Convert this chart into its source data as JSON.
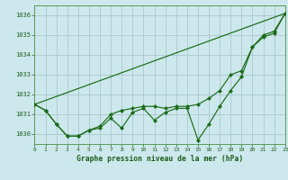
{
  "x": [
    0,
    1,
    2,
    3,
    4,
    5,
    6,
    7,
    8,
    9,
    10,
    11,
    12,
    13,
    14,
    15,
    16,
    17,
    18,
    19,
    20,
    21,
    22,
    23
  ],
  "line1": [
    1031.5,
    1031.2,
    1030.5,
    1029.9,
    1029.9,
    1030.2,
    1030.3,
    1030.8,
    1030.3,
    1031.1,
    1031.3,
    1030.7,
    1031.1,
    1031.3,
    1031.3,
    1029.7,
    1030.5,
    1031.4,
    1032.2,
    1032.9,
    1034.4,
    1034.9,
    1035.1,
    1036.1
  ],
  "line2": [
    1031.5,
    1031.2,
    1030.5,
    1029.9,
    1029.9,
    1030.2,
    1030.4,
    1031.0,
    1031.2,
    1031.3,
    1031.4,
    1031.4,
    1031.3,
    1031.4,
    1031.4,
    1031.5,
    1031.8,
    1032.2,
    1033.0,
    1033.2,
    1034.4,
    1035.0,
    1035.2,
    1036.1
  ],
  "line3": [
    [
      0,
      1031.5
    ],
    [
      23,
      1036.1
    ]
  ],
  "ylim": [
    1029.5,
    1036.5
  ],
  "xlim": [
    0,
    23
  ],
  "yticks": [
    1030,
    1031,
    1032,
    1033,
    1034,
    1035,
    1036
  ],
  "xticks": [
    0,
    1,
    2,
    3,
    4,
    5,
    6,
    7,
    8,
    9,
    10,
    11,
    12,
    13,
    14,
    15,
    16,
    17,
    18,
    19,
    20,
    21,
    22,
    23
  ],
  "xlabel": "Graphe pression niveau de la mer (hPa)",
  "line_color": "#1a6b1a",
  "bg_color": "#cde8ec",
  "grid_color": "#a8c8cc",
  "label_color": "#1a5c1a",
  "border_color": "#5a9a5a"
}
